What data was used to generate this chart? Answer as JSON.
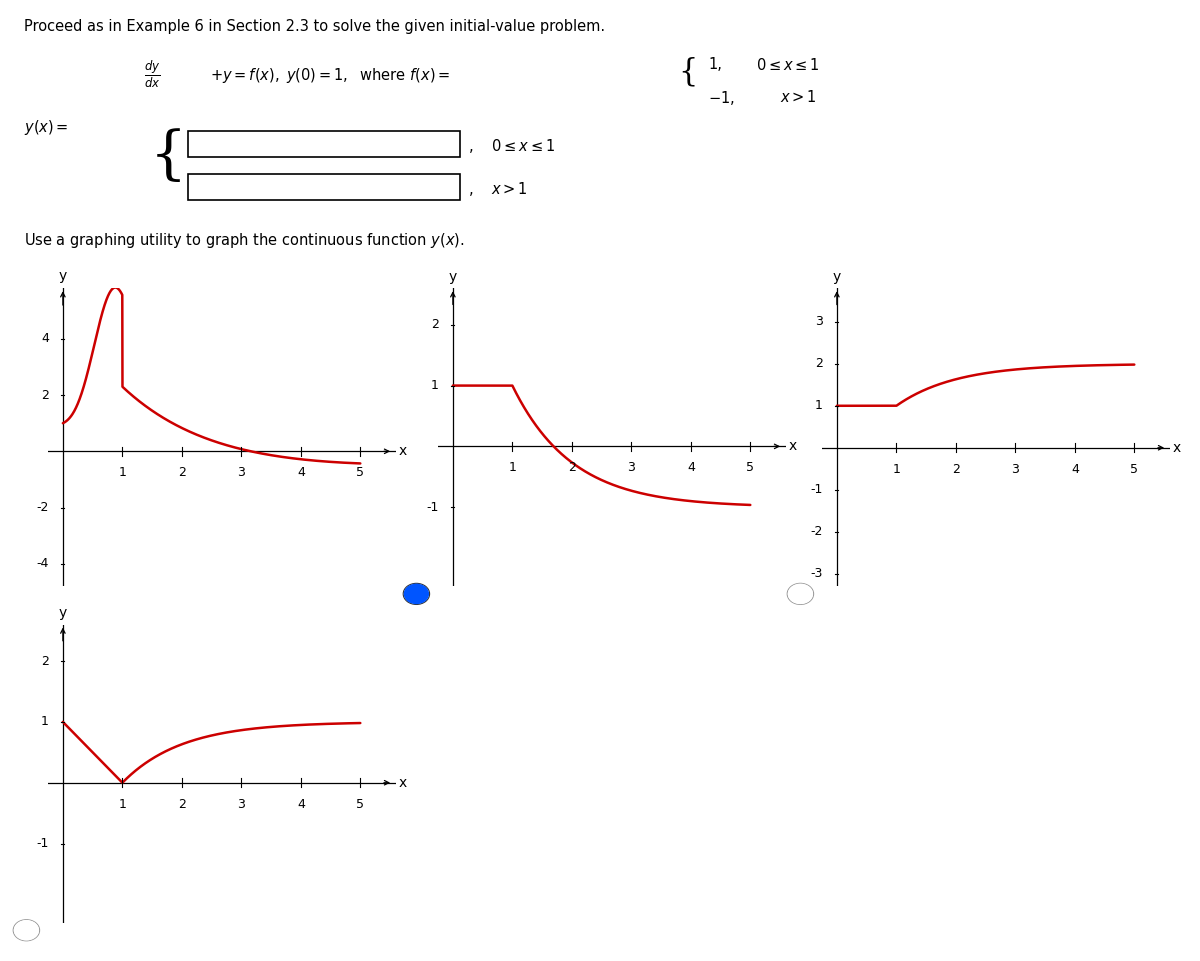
{
  "line_color": "#CC0000",
  "line_width": 1.8,
  "background": "#FFFFFF",
  "text_color": "#000000",
  "graph1": {
    "ylim": [
      -4.8,
      5.8
    ],
    "yticks": [
      -4,
      -2,
      2,
      4
    ],
    "xticks": [
      1,
      2,
      3,
      4,
      5
    ],
    "radio": false
  },
  "graph2": {
    "ylim": [
      -2.3,
      2.6
    ],
    "yticks": [
      -1,
      1,
      2
    ],
    "xticks": [
      1,
      2,
      3,
      4,
      5
    ],
    "radio": true,
    "radio_filled": true,
    "radio_color": "#0055FF"
  },
  "graph3": {
    "ylim": [
      -3.3,
      3.8
    ],
    "yticks": [
      -3,
      -2,
      -1,
      1,
      2,
      3
    ],
    "xticks": [
      1,
      2,
      3,
      4,
      5
    ],
    "radio": true,
    "radio_filled": false
  },
  "graph4": {
    "ylim": [
      -2.3,
      2.6
    ],
    "yticks": [
      -1,
      1,
      2
    ],
    "xticks": [
      1,
      2,
      3,
      4,
      5
    ],
    "radio": true,
    "radio_filled": false
  }
}
